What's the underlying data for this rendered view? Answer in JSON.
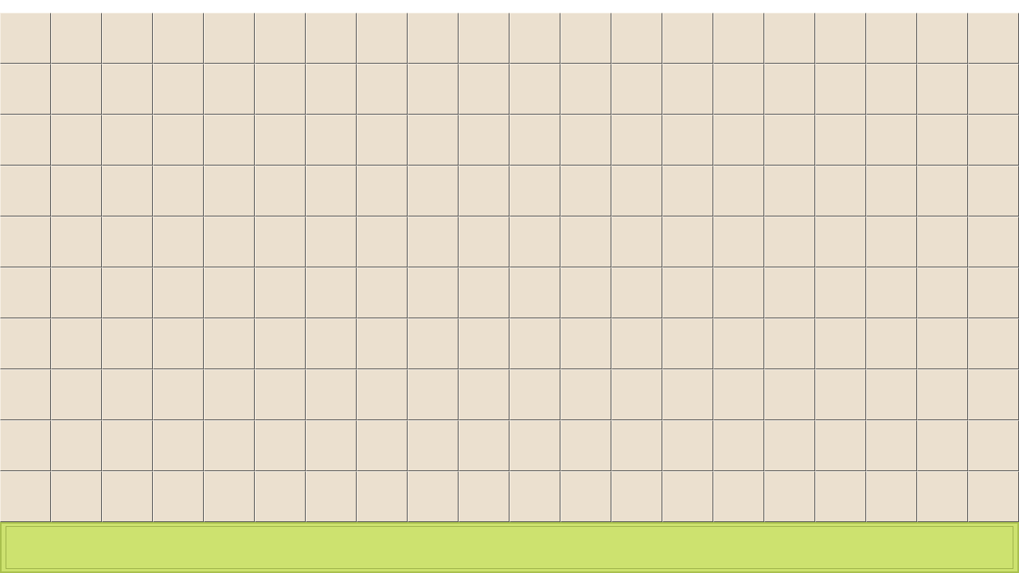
{
  "board": {
    "columns": 20,
    "rows": 10,
    "cell_color": "#ebe0cf",
    "grid_line_color": "#555555"
  },
  "status_panel": {
    "color": "#cde26f",
    "message": ""
  }
}
